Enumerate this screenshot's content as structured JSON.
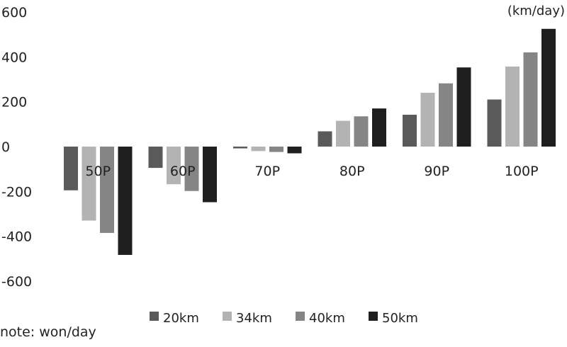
{
  "chart_data": {
    "type": "bar",
    "title": "",
    "xlabel": "",
    "ylabel": "",
    "unit_label": "(km/day)",
    "note": "note: won/day",
    "categories": [
      "50P",
      "60P",
      "70P",
      "80P",
      "90P",
      "100P"
    ],
    "series": [
      {
        "name": "20km",
        "color": "#5a5a5a",
        "values": [
          -195,
          -95,
          -8,
          68,
          142,
          210
        ]
      },
      {
        "name": "34km",
        "color": "#b3b3b3",
        "values": [
          -330,
          -168,
          -20,
          115,
          240,
          357
        ]
      },
      {
        "name": "40km",
        "color": "#858585",
        "values": [
          -385,
          -198,
          -24,
          135,
          282,
          420
        ]
      },
      {
        "name": "50km",
        "color": "#1f1f1f",
        "values": [
          -483,
          -248,
          -30,
          170,
          353,
          525
        ]
      }
    ],
    "yticks": [
      600,
      400,
      200,
      0,
      -200,
      -400,
      -600
    ],
    "ylim": [
      -600,
      600
    ],
    "grid": false,
    "legend_position": "bottom"
  }
}
